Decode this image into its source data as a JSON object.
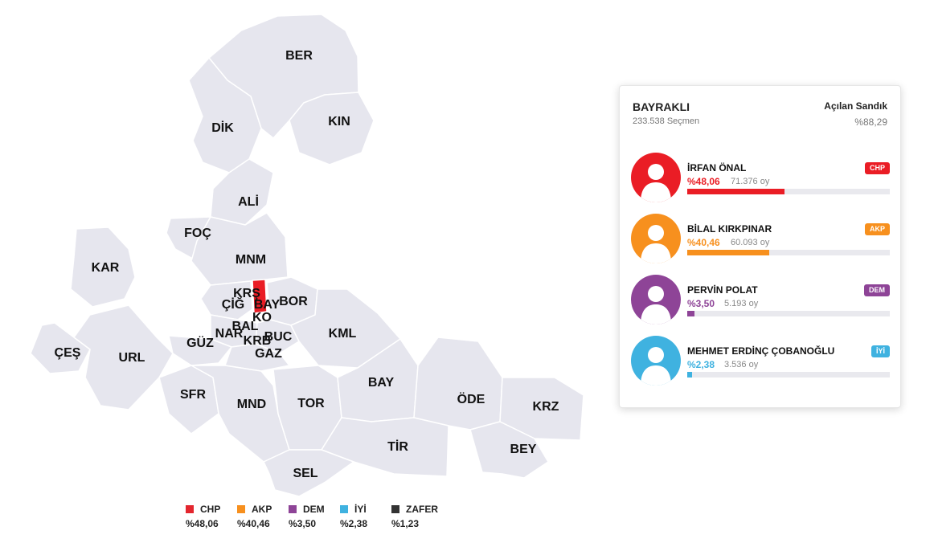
{
  "map": {
    "districts": [
      {
        "code": "BER"
      },
      {
        "code": "DİK"
      },
      {
        "code": "KIN"
      },
      {
        "code": "ALİ"
      },
      {
        "code": "FOÇ"
      },
      {
        "code": "MNM"
      },
      {
        "code": "KAR"
      },
      {
        "code": "KRŞ"
      },
      {
        "code": "ÇİĞ"
      },
      {
        "code": "BAY"
      },
      {
        "code": "BOR"
      },
      {
        "code": "KO"
      },
      {
        "code": "BAL"
      },
      {
        "code": "NAR"
      },
      {
        "code": "BUC"
      },
      {
        "code": "KRB"
      },
      {
        "code": "GÜZ"
      },
      {
        "code": "GAZ"
      },
      {
        "code": "KML"
      },
      {
        "code": "ÇEŞ"
      },
      {
        "code": "URL"
      },
      {
        "code": "SFR"
      },
      {
        "code": "MND"
      },
      {
        "code": "TOR"
      },
      {
        "code": "BAY"
      },
      {
        "code": "ÖDE"
      },
      {
        "code": "KRZ"
      },
      {
        "code": "TİR"
      },
      {
        "code": "BEY"
      },
      {
        "code": "SEL"
      }
    ],
    "highlight_color": "#ea1d25",
    "region_color": "#e6e6ee"
  },
  "legend": [
    {
      "party": "CHP",
      "percent": "%48,06",
      "color": "#e3262e"
    },
    {
      "party": "AKP",
      "percent": "%40,46",
      "color": "#f7901e"
    },
    {
      "party": "DEM",
      "percent": "%3,50",
      "color": "#8e4497"
    },
    {
      "party": "İYİ",
      "percent": "%2,38",
      "color": "#3fb2e0"
    },
    {
      "party": "ZAFER",
      "percent": "%1,23",
      "color": "#333333"
    }
  ],
  "card": {
    "district": "BAYRAKLI",
    "voters": "233.538 Seçmen",
    "opened_label": "Açılan Sandık",
    "opened_percent": "%88,29",
    "candidates": [
      {
        "name": "İRFAN ÖNAL",
        "party": "CHP",
        "percent": "%48,06",
        "votes": "71.376 oy",
        "share": 0.4806,
        "color": "#ea1d25"
      },
      {
        "name": "BİLAL KIRKPINAR",
        "party": "AKP",
        "percent": "%40,46",
        "votes": "60.093 oy",
        "share": 0.4046,
        "color": "#f7901e"
      },
      {
        "name": "PERVİN POLAT",
        "party": "DEM",
        "percent": "%3,50",
        "votes": "5.193 oy",
        "share": 0.035,
        "color": "#8e4497"
      },
      {
        "name": "MEHMET ERDİNÇ ÇOBANOĞLU",
        "party": "İYİ",
        "percent": "%2,38",
        "votes": "3.536 oy",
        "share": 0.0238,
        "color": "#3fb2e0"
      }
    ]
  }
}
